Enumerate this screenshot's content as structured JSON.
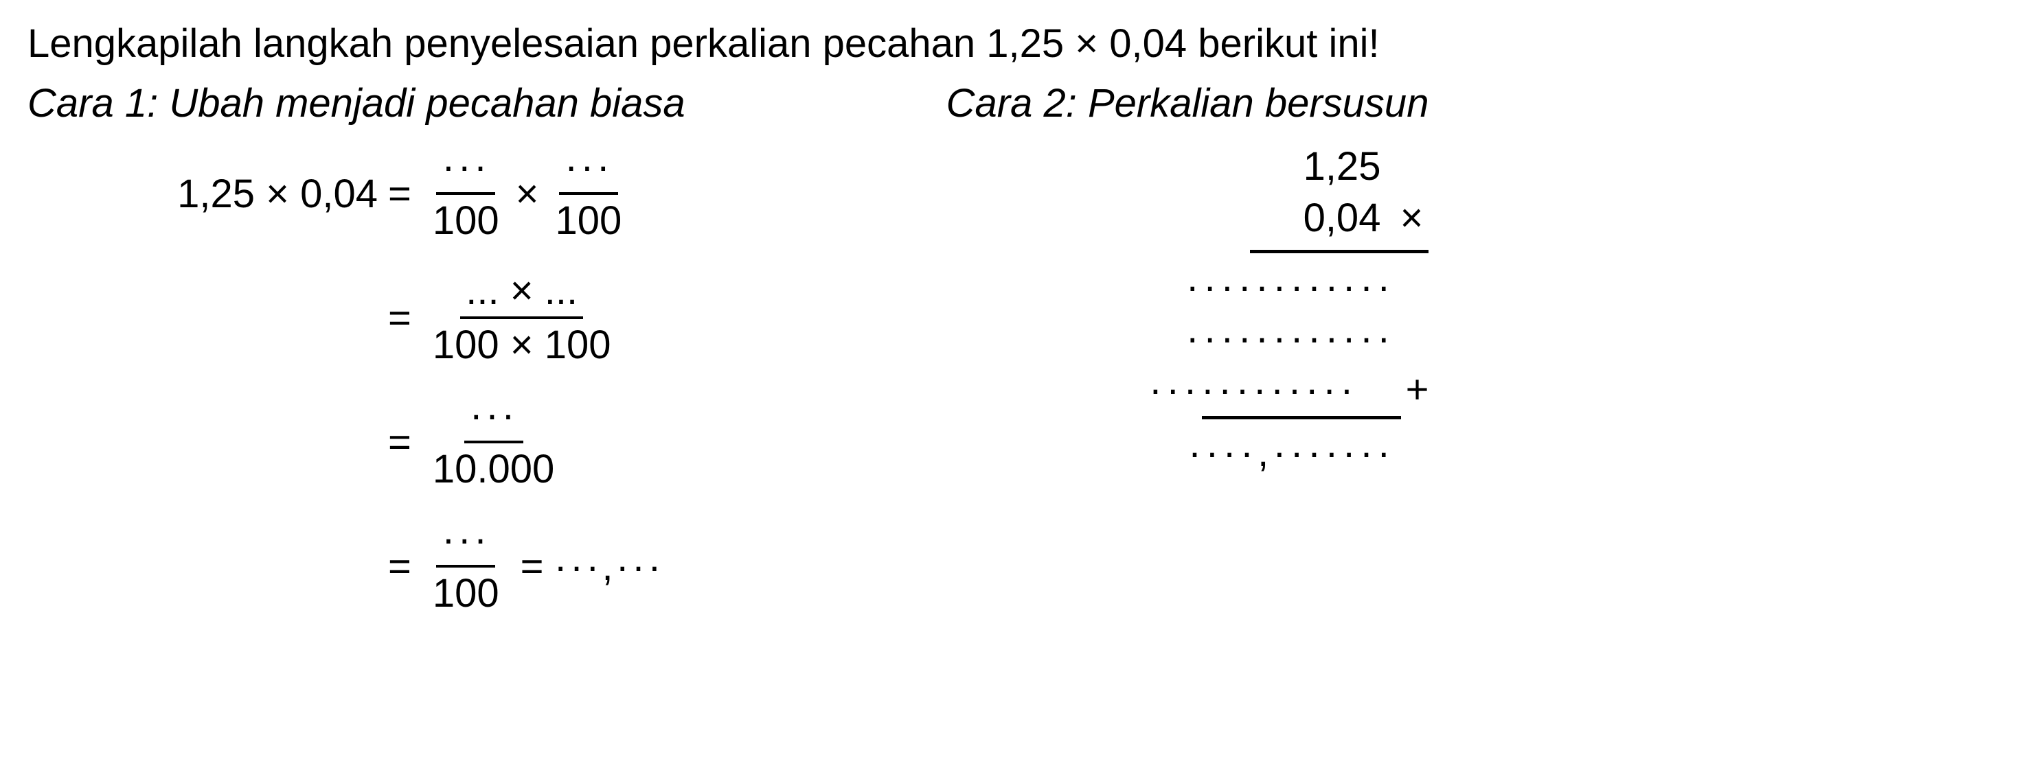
{
  "instruction": "Lengkapilah langkah penyelesaian perkalian pecahan 1,25 × 0,04 berikut ini!",
  "method1": {
    "title": "Cara 1: Ubah menjadi pecahan biasa",
    "line1": {
      "lhs": "1,25 × 0,04",
      "num1": "···",
      "den1": "100",
      "num2": "···",
      "den2": "100"
    },
    "line2": {
      "num": "... × ...",
      "den": "100 × 100"
    },
    "line3": {
      "num": "···",
      "den": "10.000"
    },
    "line4": {
      "num": "···",
      "den": "100",
      "trailing": "···,···"
    }
  },
  "method2": {
    "title": "Cara 2: Perkalian bersusun",
    "multiplicand": "1,25",
    "multiplier": "0,04",
    "op": "×",
    "partial1": "············",
    "partial2": "············",
    "partial3": "············",
    "plus": "+",
    "result": "····,·······"
  },
  "style": {
    "font_family": "Arial",
    "instruction_fontsize": 58,
    "math_fontsize": 58,
    "text_color": "#000000",
    "background_color": "#ffffff",
    "rule_thickness": 4
  }
}
